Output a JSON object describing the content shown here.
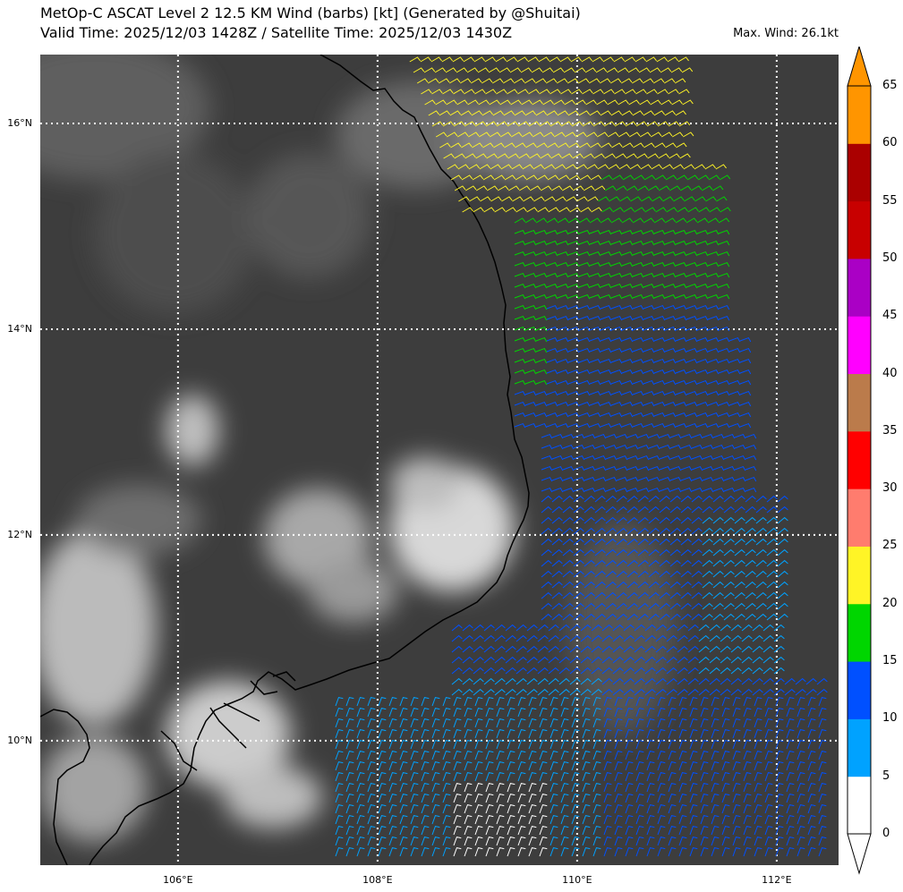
{
  "header": {
    "title_line1": "MetOp-C ASCAT Level 2 12.5 KM Wind (barbs) [kt] (Generated by @Shuitai)",
    "title_line2": "Valid Time: 2025/12/03 1428Z / Satellite Time: 2025/12/03 1430Z",
    "max_wind": "Max. Wind: 26.1kt"
  },
  "map": {
    "extent": {
      "lon": [
        104.62,
        112.62
      ],
      "lat": [
        8.79,
        16.67
      ]
    },
    "lat_labels": [
      "16°N",
      "14°N",
      "12°N",
      "10°N"
    ],
    "lat_values": [
      16,
      14,
      12,
      10
    ],
    "lon_labels": [
      "106°E",
      "108°E",
      "110°E",
      "112°E"
    ],
    "lon_values": [
      106,
      108,
      110,
      112
    ],
    "background": "IR satellite imagery (grayscale)",
    "coastline_color": "#000000",
    "grid_color": "#ffffff",
    "grid_style": "dotted"
  },
  "colorbar": {
    "levels": [
      "0",
      "5",
      "10",
      "15",
      "20",
      "25",
      "30",
      "35",
      "40",
      "45",
      "50",
      "55",
      "60",
      "65"
    ],
    "colors": [
      "#ffffff",
      "#00a2ff",
      "#0050ff",
      "#00d600",
      "#fff426",
      "#ff7c6e",
      "#ff0000",
      "#bb7b4b",
      "#ff00ff",
      "#aa00c5",
      "#c80000",
      "#aa0000",
      "#ff9500"
    ],
    "extend": "both"
  }
}
